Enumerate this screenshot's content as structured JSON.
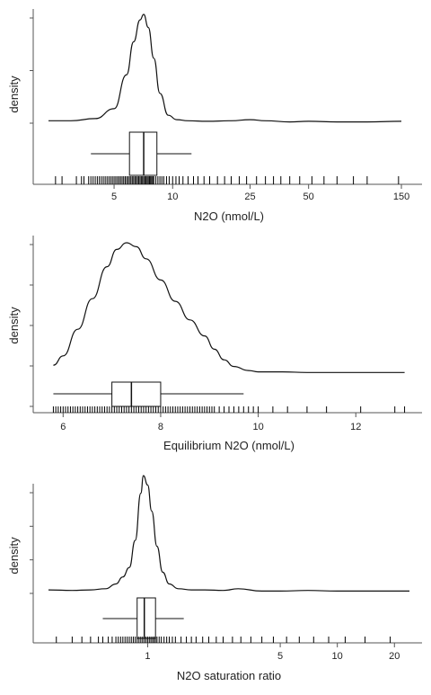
{
  "chart_data": [
    {
      "type": "density",
      "xlabel": "N2O (nmol/L)",
      "ylabel": "density",
      "xscale": "log",
      "xlim": [
        2.3,
        165
      ],
      "xticks": [
        5,
        10,
        25,
        50,
        150
      ],
      "xtick_labels": [
        "5",
        "10",
        "25",
        "50",
        "150"
      ],
      "yticks": 3,
      "density": {
        "x": [
          2.3,
          3.0,
          4.0,
          5.0,
          5.8,
          6.3,
          6.8,
          7.1,
          7.5,
          8.0,
          8.6,
          9.5,
          10.5,
          12,
          15,
          20,
          25,
          30,
          40,
          50,
          70,
          100,
          150
        ],
        "y": [
          0.03,
          0.03,
          0.05,
          0.14,
          0.45,
          0.75,
          0.95,
          1.0,
          0.88,
          0.6,
          0.28,
          0.08,
          0.04,
          0.03,
          0.025,
          0.03,
          0.04,
          0.03,
          0.02,
          0.025,
          0.02,
          0.02,
          0.025
        ]
      },
      "boxplot": {
        "whisker_low": 3.8,
        "q1": 6.0,
        "median": 7.1,
        "q3": 8.3,
        "whisker_high": 12.5
      },
      "rug": [
        2.5,
        2.7,
        3.2,
        3.4,
        3.5,
        3.7,
        3.8,
        3.9,
        4.0,
        4.1,
        4.2,
        4.3,
        4.4,
        4.5,
        4.6,
        4.7,
        4.8,
        4.9,
        5.0,
        5.1,
        5.2,
        5.3,
        5.4,
        5.5,
        5.6,
        5.7,
        5.8,
        5.9,
        6.0,
        6.1,
        6.2,
        6.3,
        6.4,
        6.5,
        6.6,
        6.7,
        6.8,
        6.9,
        7.0,
        7.1,
        7.2,
        7.3,
        7.4,
        7.5,
        7.6,
        7.7,
        7.8,
        7.9,
        8.0,
        8.2,
        8.4,
        8.6,
        8.8,
        9.0,
        9.3,
        9.6,
        10.0,
        10.4,
        10.8,
        11.3,
        12.0,
        12.8,
        13.5,
        14.5,
        15.5,
        17,
        18.5,
        20,
        22,
        24,
        27,
        30,
        33,
        36,
        40,
        45,
        52,
        60,
        70,
        85,
        100,
        145
      ]
    },
    {
      "type": "density",
      "xlabel": "Equilibrium N2O (nmol/L)",
      "ylabel": "density",
      "xscale": "linear",
      "xlim": [
        5.7,
        13.1
      ],
      "xticks": [
        6,
        8,
        10,
        12
      ],
      "xtick_labels": [
        "6",
        "8",
        "10",
        "12"
      ],
      "yticks": 5,
      "density": {
        "x": [
          5.8,
          6.0,
          6.3,
          6.6,
          6.9,
          7.1,
          7.3,
          7.5,
          7.7,
          8.0,
          8.3,
          8.6,
          8.9,
          9.1,
          9.3,
          9.5,
          9.8,
          10.0,
          10.5,
          11,
          12,
          13
        ],
        "y": [
          0.08,
          0.15,
          0.35,
          0.58,
          0.82,
          0.95,
          1.0,
          0.97,
          0.88,
          0.72,
          0.56,
          0.42,
          0.3,
          0.2,
          0.12,
          0.07,
          0.04,
          0.03,
          0.03,
          0.025,
          0.025,
          0.025
        ]
      },
      "boxplot": {
        "whisker_low": 5.8,
        "q1": 7.0,
        "median": 7.4,
        "q3": 8.0,
        "whisker_high": 9.7
      },
      "rug": [
        5.8,
        5.85,
        5.9,
        5.95,
        6.0,
        6.05,
        6.1,
        6.15,
        6.2,
        6.25,
        6.3,
        6.35,
        6.4,
        6.45,
        6.5,
        6.55,
        6.6,
        6.65,
        6.7,
        6.75,
        6.8,
        6.85,
        6.9,
        6.95,
        7.0,
        7.05,
        7.1,
        7.15,
        7.2,
        7.25,
        7.3,
        7.35,
        7.4,
        7.45,
        7.5,
        7.55,
        7.6,
        7.65,
        7.7,
        7.75,
        7.8,
        7.85,
        7.9,
        7.95,
        8.0,
        8.05,
        8.1,
        8.15,
        8.2,
        8.25,
        8.3,
        8.35,
        8.4,
        8.45,
        8.5,
        8.55,
        8.6,
        8.65,
        8.7,
        8.75,
        8.8,
        8.85,
        8.9,
        8.95,
        9.0,
        9.05,
        9.1,
        9.2,
        9.3,
        9.4,
        9.5,
        9.6,
        9.7,
        9.8,
        9.9,
        10.0,
        10.3,
        10.6,
        11.0,
        11.4,
        12.1,
        12.8,
        13.0
      ]
    },
    {
      "type": "density",
      "xlabel": "N2O saturation ratio",
      "ylabel": "density",
      "xscale": "log",
      "xlim": [
        0.3,
        24
      ],
      "xticks": [
        1,
        5,
        10,
        20
      ],
      "xtick_labels": [
        "1",
        "5",
        "10",
        "20"
      ],
      "yticks": 4,
      "density": {
        "x": [
          0.3,
          0.4,
          0.5,
          0.6,
          0.68,
          0.74,
          0.8,
          0.86,
          0.92,
          0.95,
          1.0,
          1.05,
          1.12,
          1.2,
          1.3,
          1.45,
          1.7,
          2.0,
          2.5,
          3.0,
          4.0,
          5.0,
          7.0,
          10,
          15,
          20,
          24
        ],
        "y": [
          0.03,
          0.025,
          0.03,
          0.04,
          0.08,
          0.14,
          0.22,
          0.45,
          0.85,
          1.0,
          0.92,
          0.7,
          0.4,
          0.18,
          0.08,
          0.04,
          0.03,
          0.03,
          0.025,
          0.04,
          0.02,
          0.02,
          0.025,
          0.02,
          0.02,
          0.02,
          0.02
        ]
      },
      "boxplot": {
        "whisker_low": 0.58,
        "q1": 0.88,
        "median": 0.96,
        "q3": 1.1,
        "whisker_high": 1.55
      },
      "rug": [
        0.33,
        0.4,
        0.45,
        0.5,
        0.55,
        0.58,
        0.62,
        0.65,
        0.68,
        0.7,
        0.72,
        0.74,
        0.76,
        0.78,
        0.8,
        0.82,
        0.84,
        0.86,
        0.88,
        0.9,
        0.92,
        0.94,
        0.96,
        0.98,
        1.0,
        1.02,
        1.04,
        1.06,
        1.08,
        1.1,
        1.12,
        1.15,
        1.18,
        1.22,
        1.26,
        1.3,
        1.35,
        1.4,
        1.5,
        1.6,
        1.7,
        1.8,
        1.95,
        2.1,
        2.3,
        2.5,
        2.8,
        3.1,
        3.5,
        4.0,
        4.6,
        5.4,
        6.3,
        7.5,
        9.0,
        11,
        14,
        19
      ]
    }
  ]
}
